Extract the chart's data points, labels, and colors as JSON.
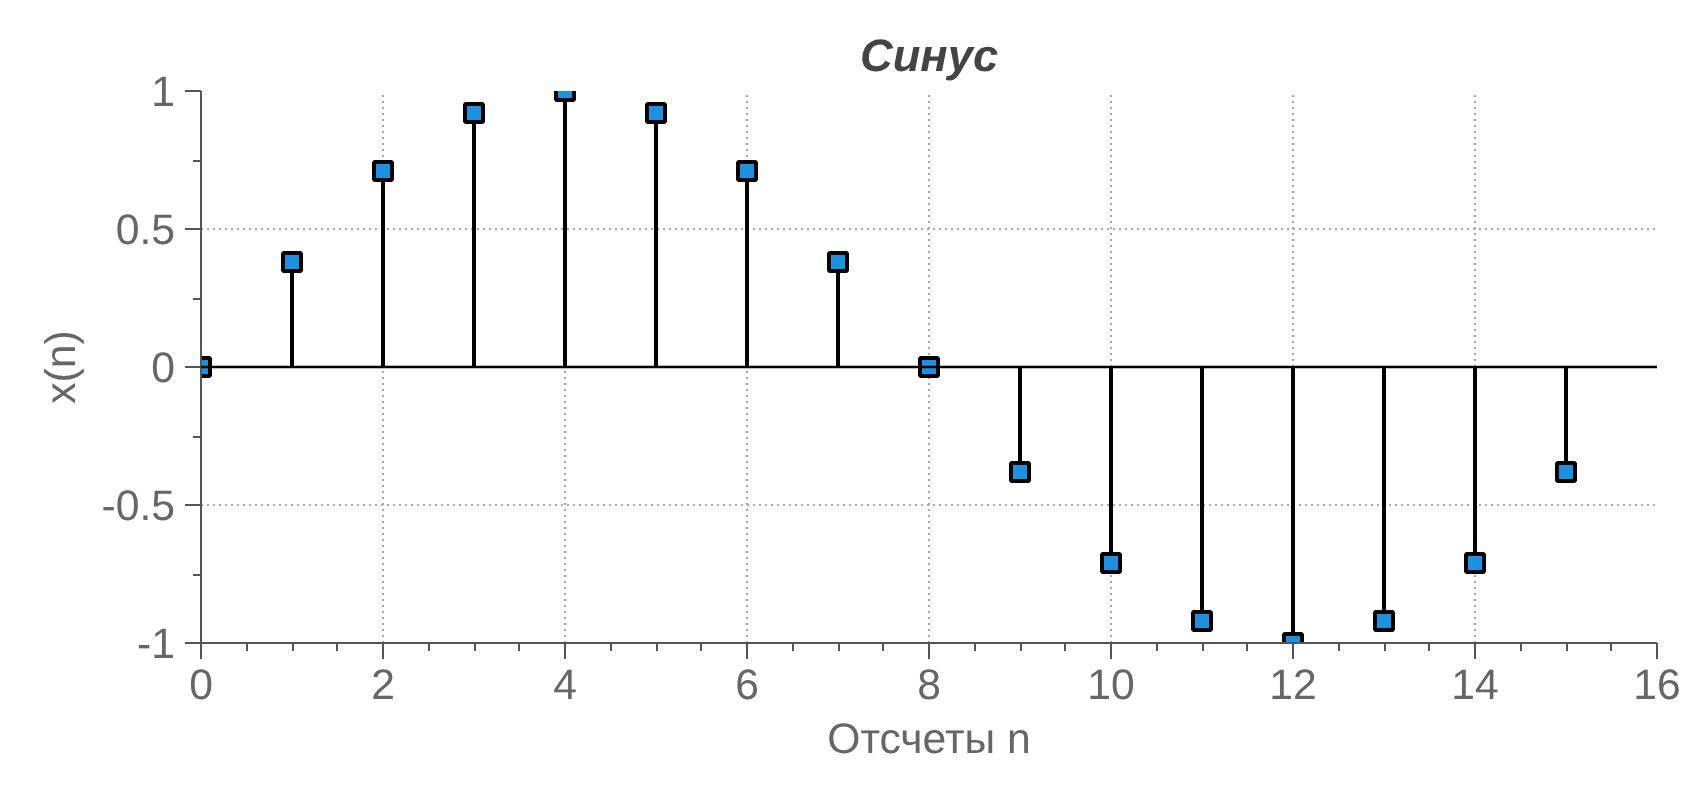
{
  "chart_data": {
    "type": "lollipop",
    "title": "Синус",
    "xlabel": "Отсчеты n",
    "ylabel": "x(n)",
    "x": [
      0,
      1,
      2,
      3,
      4,
      5,
      6,
      7,
      8,
      9,
      10,
      11,
      12,
      13,
      14,
      15
    ],
    "series": [
      {
        "color": "#1e90e0",
        "values": [
          0,
          0.38,
          0.71,
          0.92,
          1,
          0.92,
          0.71,
          0.38,
          0,
          -0.38,
          -0.71,
          -0.92,
          -1,
          -0.92,
          -0.71,
          -0.38
        ]
      }
    ],
    "xlim": [
      0,
      16
    ],
    "ylim": [
      -1,
      1
    ],
    "xticks": [
      0,
      2,
      4,
      6,
      8,
      10,
      12,
      14,
      16
    ],
    "yticks": [
      -1,
      -0.5,
      0,
      0.5,
      1
    ],
    "ref_lines": [
      {
        "axis": "y",
        "value": 0,
        "color": "#000000"
      }
    ],
    "grid": true,
    "marker": "square"
  }
}
